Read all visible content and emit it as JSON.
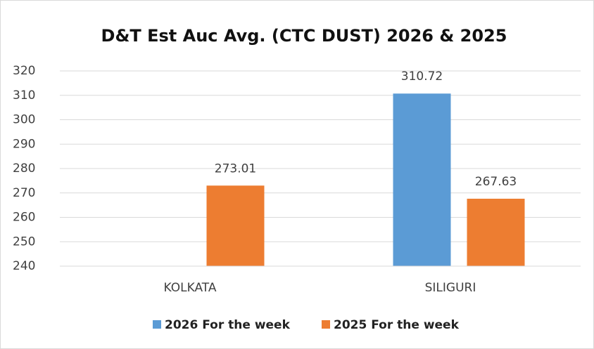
{
  "chart_data": {
    "type": "bar",
    "title": "D&T Est Auc Avg. (CTC DUST) 2026 & 2025",
    "categories": [
      "KOLKATA",
      "SILIGURI"
    ],
    "series": [
      {
        "name": "2026 For the week",
        "color": "#5b9bd5",
        "values": [
          null,
          310.72
        ]
      },
      {
        "name": "2025 For the week",
        "color": "#ed7d31",
        "values": [
          273.01,
          267.63
        ]
      }
    ],
    "ylim": [
      240,
      320
    ],
    "yticks": [
      240,
      250,
      260,
      270,
      280,
      290,
      300,
      310,
      320
    ],
    "grid": true,
    "legend": "bottom"
  }
}
